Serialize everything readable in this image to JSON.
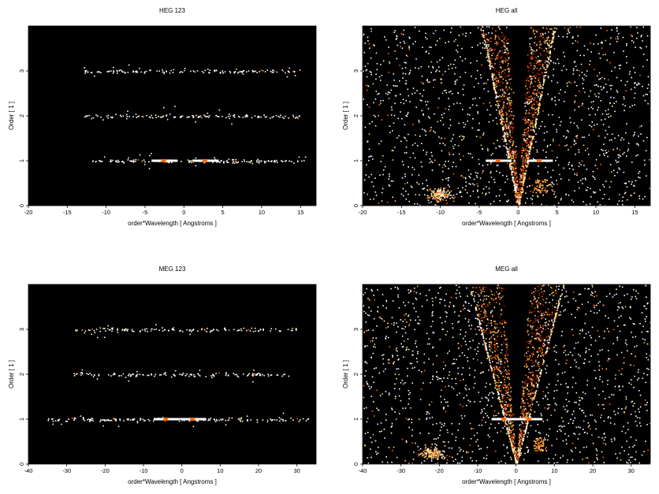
{
  "chart_data": [
    {
      "type": "heatmap",
      "title": "HEG 123",
      "xlabel": "order*Wavelength [ Angstroms ]",
      "ylabel": "Order [ 1 ]",
      "xlim": [
        -20,
        17
      ],
      "ylim": [
        0,
        4
      ],
      "xticks": [
        -20,
        -15,
        -10,
        -5,
        0,
        5,
        10,
        15
      ],
      "yticks": [
        0,
        1,
        2,
        3
      ],
      "background": "#000000",
      "colormap": [
        "#5a0000",
        "#b02000",
        "#ff6a00",
        "#ffd060",
        "#ffffff"
      ],
      "bands": [
        {
          "order": 1,
          "x_range": [
            -12,
            16
          ],
          "hot_spots": [
            -2.5,
            2.8
          ]
        },
        {
          "order": 2,
          "x_range": [
            -13,
            15
          ],
          "hot_spots": [
            -3
          ]
        },
        {
          "order": 3,
          "x_range": [
            -13,
            15
          ],
          "hot_spots": [
            -5,
            6
          ]
        }
      ],
      "v_shape": false
    },
    {
      "type": "heatmap",
      "title": "HEG all",
      "xlabel": "order*Wavelength [ Angstroms ]",
      "ylabel": "Order [ 1 ]",
      "xlim": [
        -20,
        17
      ],
      "ylim": [
        0,
        4
      ],
      "xticks": [
        -20,
        -15,
        -10,
        -5,
        0,
        5,
        10,
        15
      ],
      "yticks": [
        0,
        1,
        2,
        3
      ],
      "background": "#000000",
      "colormap": [
        "#5a0000",
        "#b02000",
        "#ff6a00",
        "#ffd060",
        "#ffffff"
      ],
      "bands": [
        {
          "order": 1,
          "x_range": [
            -4,
            4.5
          ],
          "hot_spots": [
            -2.5,
            2.8
          ]
        }
      ],
      "v_shape": true
    },
    {
      "type": "heatmap",
      "title": "MEG 123",
      "xlabel": "order*Wavelength [ Angstroms ]",
      "ylabel": "Order [ 1 ]",
      "xlim": [
        -40,
        35
      ],
      "ylim": [
        0,
        4
      ],
      "xticks": [
        -40,
        -30,
        -20,
        -10,
        0,
        10,
        20,
        30
      ],
      "yticks": [
        0,
        1,
        2,
        3
      ],
      "background": "#000000",
      "colormap": [
        "#5a0000",
        "#b02000",
        "#ff6a00",
        "#ffd060",
        "#ffffff"
      ],
      "bands": [
        {
          "order": 1,
          "x_range": [
            -35,
            33
          ],
          "hot_spots": [
            -4,
            3
          ]
        },
        {
          "order": 2,
          "x_range": [
            -30,
            28
          ],
          "hot_spots": [
            -5
          ]
        },
        {
          "order": 3,
          "x_range": [
            -28,
            30
          ],
          "hot_spots": [
            -8,
            5
          ]
        }
      ],
      "v_shape": false
    },
    {
      "type": "heatmap",
      "title": "MEG all",
      "xlabel": "order*Wavelength [ Angstroms ]",
      "ylabel": "Order [ 1 ]",
      "xlim": [
        -40,
        35
      ],
      "ylim": [
        0,
        4
      ],
      "xticks": [
        -40,
        -30,
        -20,
        -10,
        0,
        10,
        20,
        30
      ],
      "yticks": [
        0,
        1,
        2,
        3
      ],
      "background": "#000000",
      "colormap": [
        "#5a0000",
        "#b02000",
        "#ff6a00",
        "#ffd060",
        "#ffffff"
      ],
      "bands": [
        {
          "order": 1,
          "x_range": [
            -5,
            7
          ],
          "hot_spots": [
            -3,
            3.5
          ]
        }
      ],
      "v_shape": true
    }
  ]
}
